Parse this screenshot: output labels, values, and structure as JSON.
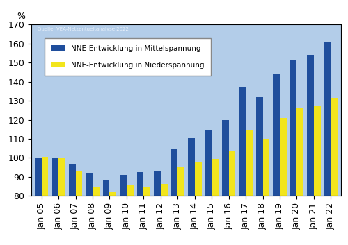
{
  "chart_data": {
    "type": "bar",
    "y_label": "%",
    "source": "Quelle: VEA-Netzentgeltanalyse 2022",
    "categories": [
      "Jan 05",
      "Jan 06",
      "Jan 07",
      "Jan 08",
      "Jan 09",
      "Jan 10",
      "Jan 11",
      "Jan 12",
      "Jan 13",
      "Jan 14",
      "Jan 15",
      "Jan 16",
      "Jan 17",
      "Jan 18",
      "Jan 19",
      "Jan 20",
      "Jan 21",
      "Jan 22"
    ],
    "series": [
      {
        "name": "NNE-Entwicklung in Mittelspannung",
        "color": "#1f4e9c",
        "values": [
          100,
          100,
          96.5,
          92,
          88,
          91,
          92.5,
          93,
          105,
          110.5,
          114.5,
          120,
          137.5,
          132,
          144,
          151.5,
          154,
          161
        ]
      },
      {
        "name": "NNE-Entwicklung in Niederspannung",
        "color": "#f2e51c",
        "values": [
          100.5,
          100,
          93,
          84.5,
          82,
          85.5,
          85,
          86.5,
          95,
          97.5,
          99.5,
          103.5,
          114.5,
          110,
          121,
          126,
          127,
          131.5
        ]
      }
    ],
    "ylim": [
      80,
      170
    ],
    "yticks": [
      80,
      90,
      100,
      110,
      120,
      130,
      140,
      150,
      160,
      170
    ],
    "grid": false,
    "legend": "upper left"
  }
}
